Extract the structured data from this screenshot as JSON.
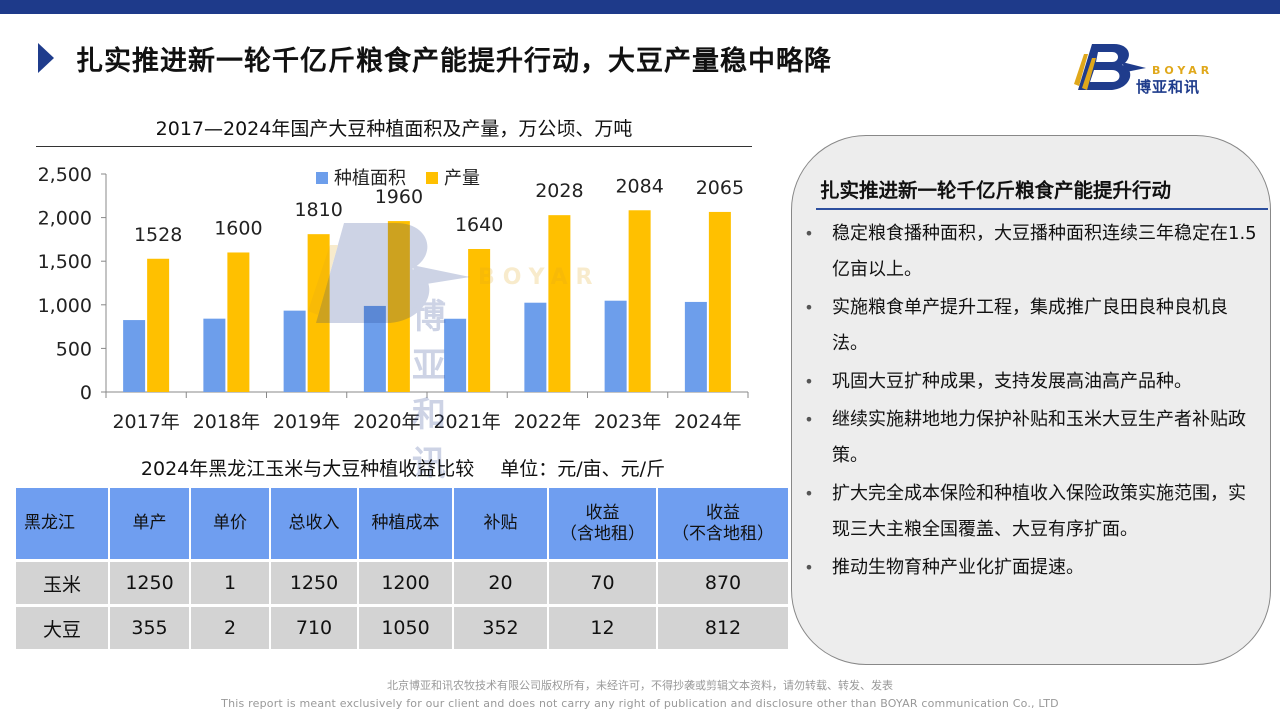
{
  "colors": {
    "top_bar": "#1e3a8a",
    "accent": "#1f3c8c",
    "area_bar": "#6d9eeb",
    "output_bar": "#ffc000",
    "logo_gold": "#e0a81b"
  },
  "header": {
    "title": "扎实推进新一轮千亿斤粮食产能提升行动，大豆产量稳中略降"
  },
  "logo": {
    "en": "BOYAR",
    "cn": "博亚和讯"
  },
  "chart_data": {
    "type": "bar",
    "title": "2017—2024年国产大豆种植面积及产量，万公顷、万吨",
    "categories": [
      "2017年",
      "2018年",
      "2019年",
      "2020年",
      "2021年",
      "2022年",
      "2023年",
      "2024年"
    ],
    "series": [
      {
        "name": "种植面积",
        "values": [
          825,
          841,
          933,
          987,
          840,
          1024,
          1047,
          1033
        ],
        "labels_shown": false
      },
      {
        "name": "产量",
        "values": [
          1528,
          1600,
          1810,
          1960,
          1640,
          2028,
          2084,
          2065
        ],
        "labels_shown": true
      }
    ],
    "y_ticks": [
      "0",
      "500",
      "1,000",
      "1,500",
      "2,000",
      "2,500"
    ],
    "ylim": [
      0,
      2500
    ],
    "legend_position": "top",
    "grid": false
  },
  "table": {
    "title": "2024年黑龙江玉米与大豆种植收益比较",
    "unit": "单位：元/亩、元/斤",
    "headers": [
      {
        "line1": "黑龙江",
        "line2": ""
      },
      {
        "line1": "单产",
        "line2": ""
      },
      {
        "line1": "单价",
        "line2": ""
      },
      {
        "line1": "总收入",
        "line2": ""
      },
      {
        "line1": "种植成本",
        "line2": ""
      },
      {
        "line1": "补贴",
        "line2": ""
      },
      {
        "line1": "收益",
        "line2": "（含地租）"
      },
      {
        "line1": "收益",
        "line2": "（不含地租）"
      }
    ],
    "rows": [
      [
        "玉米",
        "1250",
        "1",
        "1250",
        "1200",
        "20",
        "70",
        "870"
      ],
      [
        "大豆",
        "355",
        "2",
        "710",
        "1050",
        "352",
        "12",
        "812"
      ]
    ]
  },
  "panel": {
    "title": "扎实推进新一轮千亿斤粮食产能提升行动",
    "items": [
      "稳定粮食播种面积，大豆播种面积连续三年稳定在1.5亿亩以上。",
      "实施粮食单产提升工程，集成推广良田良种良机良法。",
      "巩固大豆扩种成果，支持发展高油高产品种。",
      "继续实施耕地地力保护补贴和玉米大豆生产者补贴政策。",
      "扩大完全成本保险和种植收入保险政策实施范围，实现三大主粮全国覆盖、大豆有序扩面。",
      "推动生物育种产业化扩面提速。"
    ]
  },
  "footer": {
    "cn": "北京博亚和讯农牧技术有限公司版权所有，未经许可，不得抄袭或剪辑文本资料，请勿转载、转发、发表",
    "en": "This report is meant exclusively for our client and does not carry any right of publication and disclosure other than BOYAR communication Co., LTD"
  }
}
